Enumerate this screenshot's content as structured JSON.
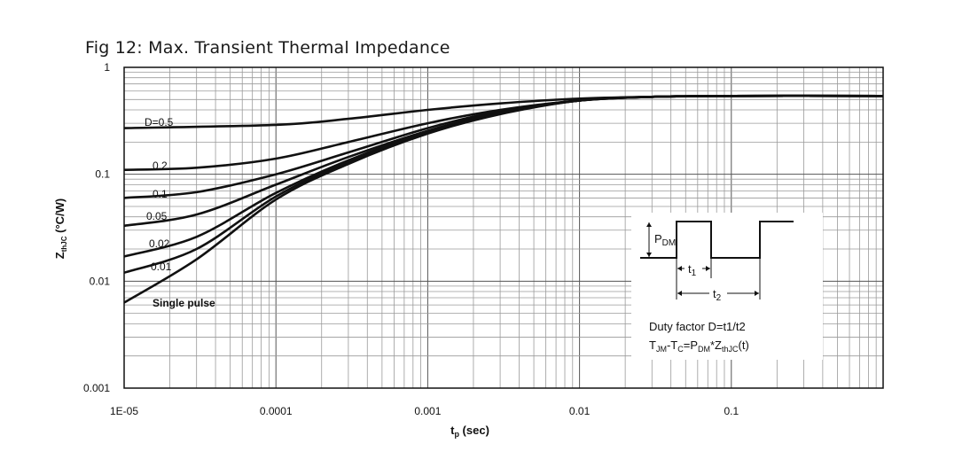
{
  "figure": {
    "title": "Fig 12: Max. Transient Thermal Impedance"
  },
  "chart_data": {
    "type": "line",
    "title": "Fig 12: Max. Transient Thermal Impedance",
    "xlabel": "tp (sec)",
    "ylabel": "ZthJC (°C/W)",
    "x_scale": "log",
    "y_scale": "log",
    "xlim": [
      1e-05,
      1
    ],
    "ylim": [
      0.001,
      1
    ],
    "grid": true,
    "x_ticks": [
      "1E-05",
      "0.0001",
      "0.001",
      "0.01",
      "0.1"
    ],
    "y_ticks": [
      "0.001",
      "0.01",
      "0.1",
      "1"
    ],
    "series": [
      {
        "name": "D=0.5",
        "x": [
          1e-05,
          0.0001,
          0.0003,
          0.001,
          0.003,
          0.01,
          0.03,
          0.1,
          1
        ],
        "y": [
          0.27,
          0.29,
          0.33,
          0.4,
          0.46,
          0.51,
          0.53,
          0.54,
          0.54
        ]
      },
      {
        "name": "0.2",
        "x": [
          1e-05,
          3e-05,
          0.0001,
          0.0003,
          0.001,
          0.003,
          0.01,
          0.03,
          0.1,
          1
        ],
        "y": [
          0.11,
          0.115,
          0.14,
          0.2,
          0.3,
          0.4,
          0.49,
          0.53,
          0.54,
          0.54
        ]
      },
      {
        "name": "0.1",
        "x": [
          1e-05,
          3e-05,
          0.0001,
          0.0003,
          0.001,
          0.003,
          0.01,
          0.03,
          0.1,
          1
        ],
        "y": [
          0.06,
          0.068,
          0.1,
          0.16,
          0.27,
          0.39,
          0.49,
          0.53,
          0.54,
          0.54
        ]
      },
      {
        "name": "0.05",
        "x": [
          1e-05,
          3e-05,
          0.0001,
          0.0003,
          0.001,
          0.003,
          0.01,
          0.03,
          0.1,
          1
        ],
        "y": [
          0.033,
          0.042,
          0.08,
          0.145,
          0.255,
          0.38,
          0.49,
          0.53,
          0.54,
          0.54
        ]
      },
      {
        "name": "0.02",
        "x": [
          1e-05,
          3e-05,
          0.0001,
          0.0003,
          0.001,
          0.003,
          0.01,
          0.03,
          0.1,
          1
        ],
        "y": [
          0.017,
          0.026,
          0.067,
          0.135,
          0.25,
          0.375,
          0.49,
          0.53,
          0.54,
          0.54
        ]
      },
      {
        "name": "0.01",
        "x": [
          1e-05,
          3e-05,
          0.0001,
          0.0003,
          0.001,
          0.003,
          0.01,
          0.03,
          0.1,
          1
        ],
        "y": [
          0.012,
          0.02,
          0.062,
          0.13,
          0.245,
          0.37,
          0.49,
          0.53,
          0.54,
          0.54
        ]
      },
      {
        "name": "Single pulse",
        "x": [
          1e-05,
          3e-05,
          0.0001,
          0.0003,
          0.001,
          0.003,
          0.01,
          0.03,
          0.1,
          1
        ],
        "y": [
          0.0063,
          0.016,
          0.058,
          0.125,
          0.24,
          0.365,
          0.49,
          0.53,
          0.54,
          0.54
        ]
      }
    ],
    "curve_labels": [
      "D=0.5",
      "0.2",
      "0.1",
      "0.05",
      "0.02",
      "0.01",
      "Single pulse"
    ],
    "inset": {
      "pdm_label": "PDM",
      "t1_label": "t1",
      "t2_label": "t2",
      "duty_text": "Duty factor D=t1/t2",
      "formula_text": "TJM-TC=PDM*ZthJC(t)"
    }
  }
}
